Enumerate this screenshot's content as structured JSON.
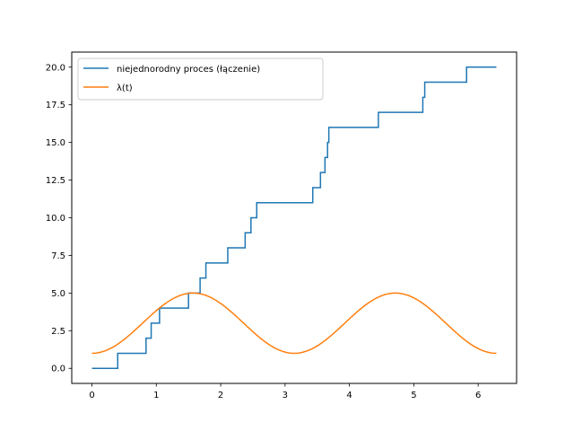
{
  "chart_data": {
    "type": "line",
    "title": "",
    "xlabel": "",
    "ylabel": "",
    "xlim": [
      -0.314,
      6.597
    ],
    "ylim": [
      -1.0,
      21.0
    ],
    "xticks": [
      0,
      1,
      2,
      3,
      4,
      5,
      6
    ],
    "yticks": [
      0.0,
      2.5,
      5.0,
      7.5,
      10.0,
      12.5,
      15.0,
      17.5,
      20.0
    ],
    "xtick_labels": [
      "0",
      "1",
      "2",
      "3",
      "4",
      "5",
      "6"
    ],
    "ytick_labels": [
      "0.0",
      "2.5",
      "5.0",
      "7.5",
      "10.0",
      "12.5",
      "15.0",
      "17.5",
      "20.0"
    ],
    "grid": false,
    "legend_position": "top-left",
    "series": [
      {
        "name": "niejednorodny proces (łączenie)",
        "kind": "step",
        "color": "#1f77b4",
        "x": [
          0,
          0.4,
          0.84,
          0.92,
          1.05,
          1.5,
          1.68,
          1.77,
          2.11,
          2.38,
          2.47,
          2.56,
          3.43,
          3.55,
          3.62,
          3.66,
          3.68,
          4.45,
          5.14,
          5.17,
          5.82,
          6.283
        ],
        "y": [
          0,
          1,
          2,
          3,
          4,
          5,
          6,
          7,
          8,
          9,
          10,
          11,
          12,
          13,
          14,
          15,
          16,
          17,
          18,
          19,
          20,
          20
        ]
      },
      {
        "name": "λ(t)",
        "kind": "line",
        "color": "#ff7f0e",
        "function": "3 - 2*cos(2t)",
        "x_range": [
          0,
          6.283
        ]
      }
    ]
  }
}
